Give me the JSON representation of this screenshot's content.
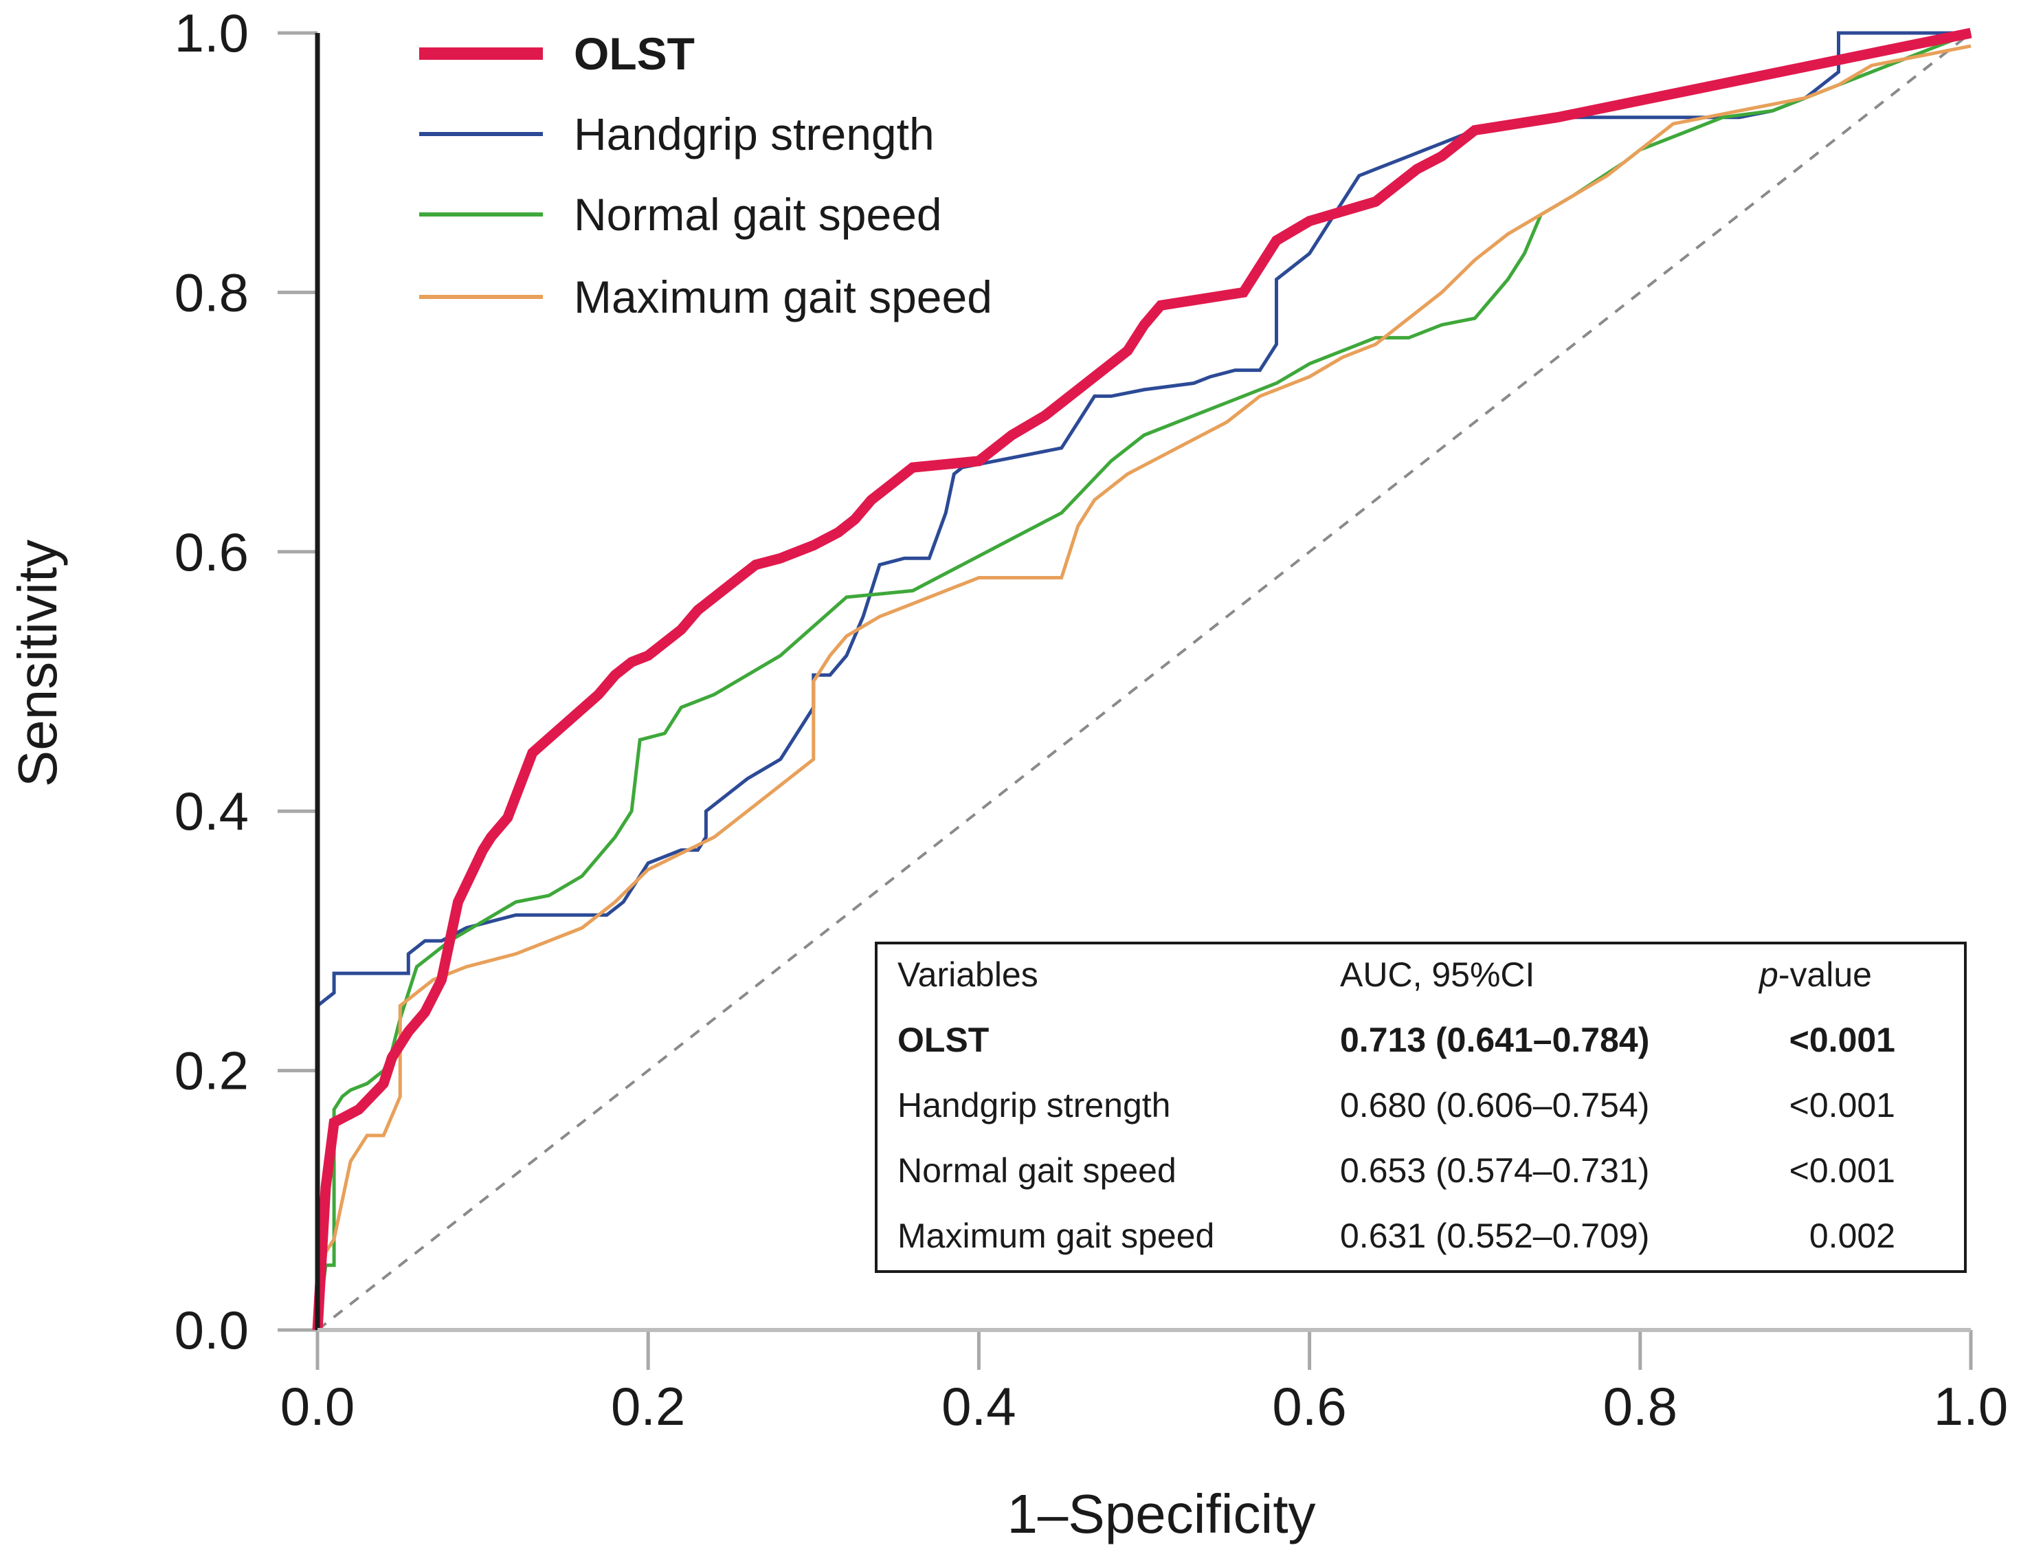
{
  "chart_data": {
    "type": "line",
    "xlabel": "1–Specificity",
    "ylabel": "Sensitivity",
    "xlim": [
      0,
      1
    ],
    "ylim": [
      0,
      1
    ],
    "x_ticks": [
      "0.0",
      "0.2",
      "0.4",
      "0.6",
      "0.8",
      "1.0"
    ],
    "y_ticks": [
      "0.0",
      "0.2",
      "0.4",
      "0.6",
      "0.8",
      "1.0"
    ],
    "legend_position": "top-left",
    "reference_line": {
      "name": "Chance",
      "x": [
        0,
        1
      ],
      "y": [
        0,
        1
      ],
      "color": "#8a8a8a",
      "style": "dashed"
    },
    "series": [
      {
        "name": "OLST",
        "color": "#e0194c",
        "bold": true,
        "width": "thick",
        "x": [
          0,
          0.005,
          0.005,
          0.01,
          0.01,
          0.025,
          0.025,
          0.04,
          0.04,
          0.045,
          0.045,
          0.055,
          0.055,
          0.065,
          0.065,
          0.075,
          0.075,
          0.085,
          0.085,
          0.1,
          0.1,
          0.105,
          0.105,
          0.115,
          0.115,
          0.13,
          0.13,
          0.17,
          0.17,
          0.18,
          0.18,
          0.19,
          0.19,
          0.2,
          0.2,
          0.22,
          0.22,
          0.23,
          0.23,
          0.245,
          0.245,
          0.255,
          0.255,
          0.265,
          0.265,
          0.28,
          0.28,
          0.3,
          0.3,
          0.315,
          0.315,
          0.325,
          0.325,
          0.335,
          0.335,
          0.345,
          0.345,
          0.36,
          0.36,
          0.4,
          0.4,
          0.42,
          0.42,
          0.44,
          0.44,
          0.45,
          0.45,
          0.49,
          0.49,
          0.5,
          0.5,
          0.51,
          0.51,
          0.56,
          0.56,
          0.57,
          0.57,
          0.58,
          0.58,
          0.6,
          0.6,
          0.64,
          0.64,
          0.65,
          0.65,
          0.665,
          0.665,
          0.68,
          0.68,
          0.69,
          0.69,
          0.7,
          0.7,
          0.75,
          1.0
        ],
        "y": [
          0,
          0.11,
          0.11,
          0.16,
          0.16,
          0.17,
          0.17,
          0.19,
          0.19,
          0.21,
          0.21,
          0.23,
          0.23,
          0.245,
          0.245,
          0.27,
          0.27,
          0.33,
          0.33,
          0.37,
          0.37,
          0.38,
          0.38,
          0.395,
          0.395,
          0.445,
          0.445,
          0.49,
          0.49,
          0.505,
          0.505,
          0.515,
          0.515,
          0.52,
          0.52,
          0.54,
          0.54,
          0.555,
          0.555,
          0.57,
          0.57,
          0.58,
          0.58,
          0.59,
          0.59,
          0.595,
          0.595,
          0.605,
          0.605,
          0.615,
          0.615,
          0.625,
          0.625,
          0.64,
          0.64,
          0.65,
          0.65,
          0.665,
          0.665,
          0.67,
          0.67,
          0.69,
          0.69,
          0.705,
          0.705,
          0.715,
          0.715,
          0.755,
          0.755,
          0.775,
          0.775,
          0.79,
          0.79,
          0.8,
          0.8,
          0.82,
          0.82,
          0.84,
          0.84,
          0.855,
          0.855,
          0.87,
          0.87,
          0.88,
          0.88,
          0.895,
          0.895,
          0.905,
          0.905,
          0.915,
          0.915,
          0.925,
          0.925,
          0.935,
          1.0
        ]
      },
      {
        "name": "Handgrip strength",
        "color": "#2c4a96",
        "bold": false,
        "width": "thin",
        "x": [
          0,
          0,
          0.01,
          0.01,
          0.055,
          0.055,
          0.065,
          0.075,
          0.09,
          0.12,
          0.175,
          0.185,
          0.2,
          0.22,
          0.23,
          0.235,
          0.235,
          0.26,
          0.28,
          0.29,
          0.3,
          0.3,
          0.31,
          0.32,
          0.33,
          0.34,
          0.355,
          0.37,
          0.38,
          0.385,
          0.39,
          0.41,
          0.43,
          0.45,
          0.46,
          0.47,
          0.48,
          0.5,
          0.5,
          0.53,
          0.54,
          0.555,
          0.57,
          0.58,
          0.58,
          0.6,
          0.61,
          0.62,
          0.63,
          0.64,
          0.65,
          0.66,
          0.67,
          0.68,
          0.69,
          0.7,
          0.72,
          0.74,
          0.75,
          0.78,
          0.82,
          0.86,
          0.88,
          0.9,
          0.92,
          0.92,
          1.0
        ],
        "y": [
          0,
          0.25,
          0.26,
          0.275,
          0.275,
          0.29,
          0.3,
          0.3,
          0.31,
          0.32,
          0.32,
          0.33,
          0.36,
          0.37,
          0.37,
          0.38,
          0.4,
          0.425,
          0.44,
          0.46,
          0.48,
          0.505,
          0.505,
          0.52,
          0.55,
          0.59,
          0.595,
          0.595,
          0.63,
          0.66,
          0.665,
          0.67,
          0.675,
          0.68,
          0.7,
          0.72,
          0.72,
          0.725,
          0.725,
          0.73,
          0.735,
          0.74,
          0.74,
          0.76,
          0.81,
          0.83,
          0.85,
          0.87,
          0.89,
          0.895,
          0.9,
          0.905,
          0.91,
          0.915,
          0.92,
          0.925,
          0.93,
          0.935,
          0.935,
          0.935,
          0.935,
          0.935,
          0.94,
          0.95,
          0.97,
          1.0,
          1.0
        ]
      },
      {
        "name": "Normal gait speed",
        "color": "#3ea83a",
        "bold": false,
        "width": "thin",
        "x": [
          0,
          0.005,
          0.01,
          0.01,
          0.015,
          0.02,
          0.03,
          0.04,
          0.045,
          0.05,
          0.06,
          0.08,
          0.1,
          0.12,
          0.14,
          0.16,
          0.18,
          0.19,
          0.195,
          0.21,
          0.22,
          0.24,
          0.28,
          0.32,
          0.36,
          0.42,
          0.45,
          0.48,
          0.5,
          0.54,
          0.58,
          0.6,
          0.62,
          0.64,
          0.66,
          0.68,
          0.7,
          0.72,
          0.73,
          0.74,
          0.76,
          0.79,
          0.8,
          0.82,
          0.85,
          0.88,
          0.9,
          0.93,
          0.95,
          1.0
        ],
        "y": [
          0,
          0.05,
          0.05,
          0.17,
          0.18,
          0.185,
          0.19,
          0.2,
          0.215,
          0.24,
          0.28,
          0.3,
          0.315,
          0.33,
          0.335,
          0.35,
          0.38,
          0.4,
          0.455,
          0.46,
          0.48,
          0.49,
          0.52,
          0.565,
          0.57,
          0.61,
          0.63,
          0.67,
          0.69,
          0.71,
          0.73,
          0.745,
          0.755,
          0.765,
          0.765,
          0.775,
          0.78,
          0.81,
          0.83,
          0.86,
          0.875,
          0.9,
          0.91,
          0.92,
          0.935,
          0.94,
          0.95,
          0.965,
          0.975,
          1.0
        ]
      },
      {
        "name": "Maximum gait speed",
        "color": "#e8a05a",
        "bold": false,
        "width": "thin",
        "x": [
          0,
          0.005,
          0.01,
          0.015,
          0.02,
          0.025,
          0.03,
          0.04,
          0.05,
          0.05,
          0.06,
          0.07,
          0.08,
          0.09,
          0.12,
          0.14,
          0.16,
          0.18,
          0.2,
          0.24,
          0.26,
          0.28,
          0.29,
          0.3,
          0.3,
          0.31,
          0.32,
          0.34,
          0.36,
          0.4,
          0.43,
          0.45,
          0.46,
          0.47,
          0.49,
          0.52,
          0.55,
          0.57,
          0.6,
          0.62,
          0.64,
          0.66,
          0.68,
          0.7,
          0.72,
          0.74,
          0.76,
          0.78,
          0.8,
          0.82,
          0.86,
          0.9,
          0.92,
          0.94,
          1.0
        ],
        "y": [
          0,
          0.06,
          0.07,
          0.1,
          0.13,
          0.14,
          0.15,
          0.15,
          0.18,
          0.25,
          0.26,
          0.27,
          0.275,
          0.28,
          0.29,
          0.3,
          0.31,
          0.33,
          0.355,
          0.38,
          0.4,
          0.42,
          0.43,
          0.44,
          0.5,
          0.52,
          0.535,
          0.55,
          0.56,
          0.58,
          0.58,
          0.58,
          0.62,
          0.64,
          0.66,
          0.68,
          0.7,
          0.72,
          0.735,
          0.75,
          0.76,
          0.78,
          0.8,
          0.825,
          0.845,
          0.86,
          0.875,
          0.89,
          0.91,
          0.93,
          0.94,
          0.95,
          0.96,
          0.975,
          0.99
        ]
      }
    ],
    "table": {
      "headers": {
        "variable": "Variables",
        "auc": "AUC, 95%CI",
        "p_prefix": "p",
        "p_suffix": "-value"
      },
      "rows": [
        {
          "variable": "OLST",
          "auc": "0.713 (0.641–0.784)",
          "p": "<0.001",
          "bold": true
        },
        {
          "variable": "Handgrip strength",
          "auc": "0.680 (0.606–0.754)",
          "p": "<0.001",
          "bold": false
        },
        {
          "variable": "Normal gait speed",
          "auc": "0.653 (0.574–0.731)",
          "p": "<0.001",
          "bold": false
        },
        {
          "variable": "Maximum gait speed",
          "auc": "0.631 (0.552–0.709)",
          "p": "0.002",
          "bold": false
        }
      ]
    }
  }
}
